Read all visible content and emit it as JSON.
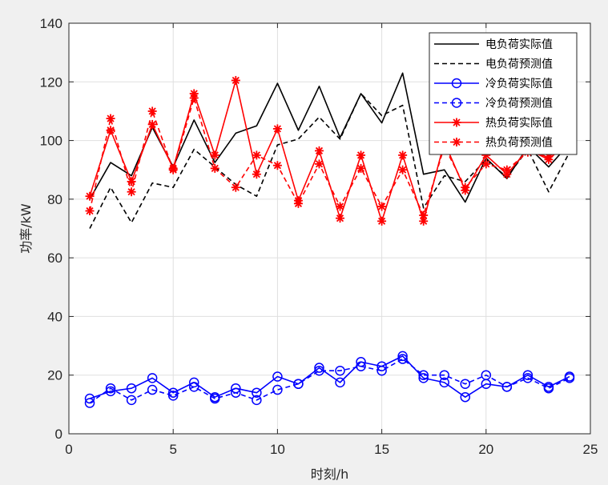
{
  "chart_data": {
    "type": "line",
    "xlabel": "时刻/h",
    "ylabel": "功率/kW",
    "xlim": [
      0,
      25
    ],
    "ylim": [
      0,
      140
    ],
    "xticks": [
      0,
      5,
      10,
      15,
      20,
      25
    ],
    "yticks": [
      0,
      20,
      40,
      60,
      80,
      100,
      120,
      140
    ],
    "grid": true,
    "legend_position": "top-right",
    "x": [
      1,
      2,
      3,
      4,
      5,
      6,
      7,
      8,
      9,
      10,
      11,
      12,
      13,
      14,
      15,
      16,
      17,
      18,
      19,
      20,
      21,
      22,
      23,
      24
    ],
    "series": [
      {
        "name": "电负荷实际值",
        "color": "#000000",
        "style": "solid",
        "marker": "none",
        "values": [
          80,
          92.5,
          88,
          104.5,
          91,
          107,
          92.5,
          102.5,
          105,
          119.5,
          103.5,
          118.5,
          101,
          116,
          106,
          123,
          88.5,
          90,
          79,
          94,
          87,
          98,
          91,
          99
        ]
      },
      {
        "name": "电负荷预测值",
        "color": "#000000",
        "style": "dashed",
        "marker": "none",
        "values": [
          70,
          84,
          72,
          85.5,
          84,
          97,
          91,
          85,
          81,
          98.5,
          100.5,
          108,
          100.5,
          116,
          108.5,
          112,
          77,
          88,
          86,
          93.5,
          87.5,
          97,
          82.5,
          96
        ]
      },
      {
        "name": "冷负荷实际值",
        "color": "#0000ff",
        "style": "solid",
        "marker": "circle",
        "values": [
          12,
          14.5,
          15.5,
          19,
          14,
          17.5,
          12.5,
          15.5,
          14,
          19.5,
          17,
          22.5,
          17.5,
          24.5,
          23,
          26.5,
          19,
          17.5,
          12.5,
          17,
          16,
          20,
          16,
          19.5
        ]
      },
      {
        "name": "冷负荷预测值",
        "color": "#0000ff",
        "style": "dashed",
        "marker": "circle",
        "values": [
          10.5,
          15.5,
          11.5,
          15,
          13,
          16,
          12,
          14,
          11.5,
          15,
          17,
          21.5,
          21.5,
          23,
          21.5,
          25.5,
          20,
          20,
          17,
          20,
          16,
          19,
          15.5,
          19
        ]
      },
      {
        "name": "热负荷实际值",
        "color": "#ff0000",
        "style": "solid",
        "marker": "star",
        "values": [
          81,
          103.5,
          86,
          105.5,
          90.5,
          116,
          95,
          120.5,
          88.5,
          104,
          79.5,
          96.5,
          73.5,
          95,
          72.5,
          95,
          72.5,
          99.5,
          83,
          95,
          88.5,
          97,
          93.5,
          100
        ]
      },
      {
        "name": "热负荷预测值",
        "color": "#ff0000",
        "style": "dashed",
        "marker": "star",
        "values": [
          76,
          107.5,
          82.5,
          110,
          90,
          114.5,
          90.5,
          84,
          95,
          91.5,
          78.5,
          92,
          77.5,
          90.5,
          77.5,
          90,
          74.5,
          98,
          84,
          92,
          90,
          96,
          94.5,
          99
        ]
      }
    ]
  }
}
